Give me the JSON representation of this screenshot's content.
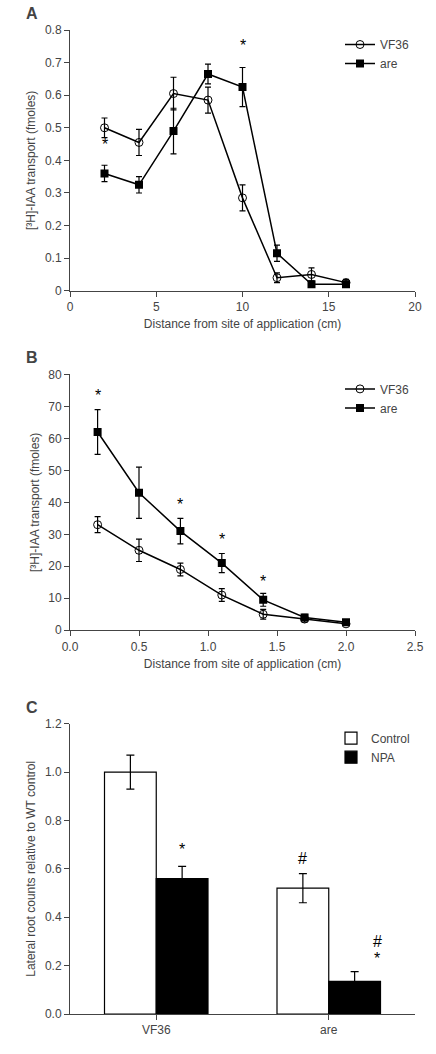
{
  "chart_data": [
    {
      "type": "line",
      "title": "A",
      "xlabel": "Distance from site of application (cm)",
      "ylabel": "[³H]-IAA transport (fmoles)",
      "x": [
        2,
        4,
        6,
        8,
        10,
        12,
        14,
        16
      ],
      "series": [
        {
          "name": "VF36",
          "color": "black",
          "marker": "circle-open",
          "values": [
            0.5,
            0.455,
            0.605,
            0.585,
            0.285,
            0.04,
            0.05,
            0.025
          ],
          "error": [
            0.03,
            0.04,
            0.05,
            0.04,
            0.04,
            0.015,
            0.02,
            0.01
          ]
        },
        {
          "name": "are",
          "color": "black",
          "marker": "square",
          "values": [
            0.36,
            0.325,
            0.49,
            0.665,
            0.625,
            0.115,
            0.02,
            0.02
          ],
          "error": [
            0.025,
            0.025,
            0.07,
            0.03,
            0.06,
            0.025,
            0.01,
            0.01
          ]
        }
      ],
      "annotations": [
        {
          "text": "*",
          "x": 2,
          "y": 0.415
        },
        {
          "text": "*",
          "x": 10,
          "y": 0.72
        }
      ],
      "xlim": [
        0,
        20
      ],
      "xticks": [
        0,
        5,
        10,
        15,
        20
      ],
      "ylim": [
        0,
        0.8
      ],
      "yticks": [
        0,
        0.1,
        0.2,
        0.3,
        0.4,
        0.5,
        0.6,
        0.7,
        0.8
      ],
      "grid": false,
      "legend": "upper right"
    },
    {
      "type": "line",
      "title": "B",
      "xlabel": "Distance from site of application (cm)",
      "ylabel": "[³H]-IAA transport (fmoles)",
      "x": [
        0.2,
        0.5,
        0.8,
        1.1,
        1.4,
        1.7,
        2.0
      ],
      "series": [
        {
          "name": "VF36",
          "color": "black",
          "marker": "circle-open",
          "values": [
            33,
            25,
            19,
            11,
            5,
            3.5,
            2
          ],
          "error": [
            2.5,
            3.5,
            2.0,
            2.0,
            1.5,
            1.0,
            0.5
          ]
        },
        {
          "name": "are",
          "color": "black",
          "marker": "square",
          "values": [
            62,
            43,
            31,
            21,
            9.5,
            4,
            2.5
          ],
          "error": [
            7,
            8,
            4,
            3,
            2,
            1.0,
            0.5
          ]
        }
      ],
      "annotations": [
        {
          "text": "*",
          "x": 0.2,
          "y": 70
        },
        {
          "text": "*",
          "x": 0.8,
          "y": 36
        },
        {
          "text": "*",
          "x": 1.1,
          "y": 25
        },
        {
          "text": "*",
          "x": 1.4,
          "y": 12
        }
      ],
      "xlim": [
        0,
        2.5
      ],
      "xticks": [
        {
          "value": 0,
          "label": "0.0"
        },
        0.5,
        {
          "value": 1,
          "label": "1.0"
        },
        1.5,
        {
          "value": 2,
          "label": "2.0"
        },
        2.5
      ],
      "ylim": [
        0,
        80
      ],
      "yticks": [
        0,
        10,
        20,
        30,
        40,
        50,
        60,
        70,
        80
      ],
      "grid": false,
      "legend": "upper right"
    },
    {
      "type": "bar",
      "title": "C",
      "ylabel": "Lateral root counts relative to WT control",
      "categories": [
        "VF36",
        "are"
      ],
      "series": [
        {
          "name": "Control",
          "color": "white",
          "values": [
            1.0,
            0.52
          ],
          "error": [
            0.07,
            0.06
          ]
        },
        {
          "name": "NPA",
          "color": "black",
          "values": [
            0.56,
            0.135
          ],
          "error": [
            0.05,
            0.04
          ]
        }
      ],
      "annotations": [
        {
          "text": "*",
          "x": "VF36",
          "series": "NPA",
          "y": 0.635
        },
        {
          "text": "#",
          "x": "are",
          "series": "Control",
          "y": 0.6
        },
        {
          "text": "#",
          "x": "are",
          "series": "NPA",
          "y": 0.225
        },
        {
          "text": "*",
          "x": "are",
          "series": "NPA",
          "y": 0.185
        }
      ],
      "ylim": [
        0,
        1.2
      ],
      "yticks": [
        {
          "value": 0,
          "label": "0.0"
        },
        0.2,
        0.4,
        0.6,
        0.8,
        {
          "value": 1,
          "label": "1.0"
        },
        1.2
      ],
      "grid": false,
      "legend": "upper right"
    }
  ]
}
